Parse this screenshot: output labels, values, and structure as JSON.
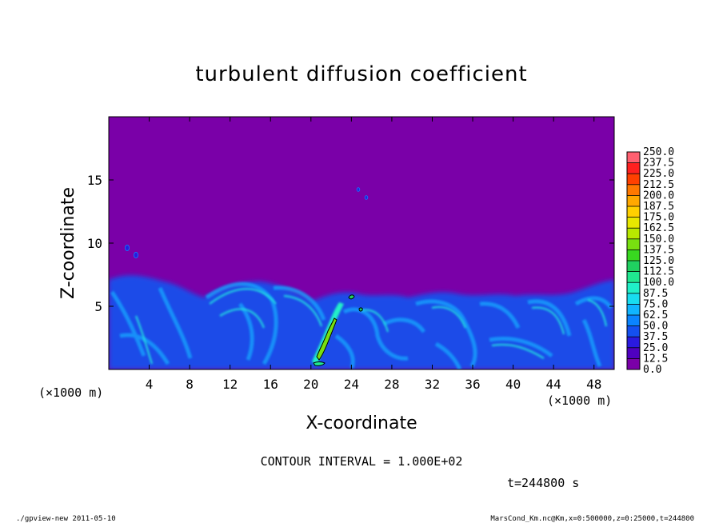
{
  "chart_data": {
    "type": "heatmap",
    "title": "turbulent diffusion coefficient",
    "xlabel": "X-coordinate",
    "ylabel": "Z-coordinate",
    "x_unit_left": "(×1000 m)",
    "x_unit_right": "(×1000 m)",
    "xlim": [
      0,
      50
    ],
    "ylim": [
      0,
      20
    ],
    "xticks": [
      "4",
      "8",
      "12",
      "16",
      "20",
      "24",
      "28",
      "32",
      "36",
      "40",
      "44",
      "48"
    ],
    "xtick_values": [
      4,
      8,
      12,
      16,
      20,
      24,
      28,
      32,
      36,
      40,
      44,
      48
    ],
    "yticks": [
      "5",
      "10",
      "15"
    ],
    "ytick_values": [
      5,
      10,
      15
    ],
    "colorbar_levels": [
      "0.0",
      "12.5",
      "25.0",
      "37.5",
      "50.0",
      "62.5",
      "75.0",
      "87.5",
      "100.0",
      "112.5",
      "125.0",
      "137.5",
      "150.0",
      "162.5",
      "175.0",
      "187.5",
      "200.0",
      "212.5",
      "225.0",
      "237.5",
      "250.0"
    ],
    "colorbar_colors": [
      "#7a00a8",
      "#4f00c0",
      "#2a1ae0",
      "#1450f0",
      "#0a84ff",
      "#10b4ff",
      "#18dcf0",
      "#20f0c8",
      "#20e890",
      "#20d060",
      "#38d820",
      "#78e010",
      "#b8e800",
      "#e8e800",
      "#ffd000",
      "#ffa800",
      "#ff7800",
      "#ff4000",
      "#ff2020",
      "#ff6070"
    ],
    "background_level": "0.0",
    "contour_interval": "CONTOUR INTERVAL = 1.000E+02",
    "time_label": "t=244800 s"
  },
  "footer": {
    "left": "./gpview-new  2011-05-10",
    "right": "MarsCond_Km.nc@Km,x=0:500000,z=0:25000,t=244800"
  }
}
